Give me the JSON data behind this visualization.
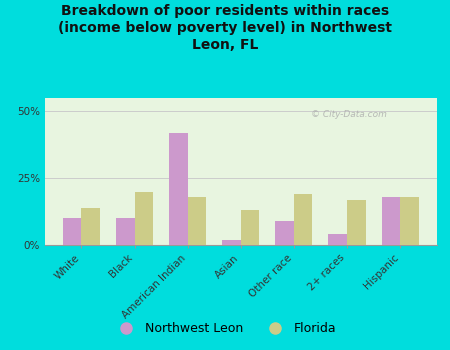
{
  "title": "Breakdown of poor residents within races\n(income below poverty level) in Northwest\nLeon, FL",
  "categories": [
    "White",
    "Black",
    "American Indian",
    "Asian",
    "Other race",
    "2+ races",
    "Hispanic"
  ],
  "nw_leon": [
    10,
    10,
    42,
    2,
    9,
    4,
    18
  ],
  "florida": [
    14,
    20,
    18,
    13,
    19,
    17,
    18
  ],
  "nw_leon_color": "#cc99cc",
  "florida_color": "#cccc88",
  "bg_outer": "#00dddd",
  "bg_plot": "#e8f5e0",
  "grid_color": "#cccccc",
  "yticks": [
    0,
    25,
    50
  ],
  "ylim": [
    0,
    55
  ],
  "bar_width": 0.35,
  "watermark": "© City-Data.com",
  "legend_nw": "Northwest Leon",
  "legend_fl": "Florida",
  "title_fontsize": 10,
  "tick_fontsize": 7.5,
  "legend_fontsize": 9
}
